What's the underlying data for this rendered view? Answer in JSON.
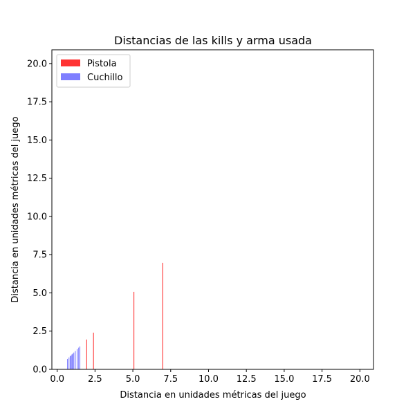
{
  "chart_data": {
    "type": "bar",
    "title": "Distancias de las kills y arma usada",
    "xlabel": "Distancia en unidades métricas del juego",
    "ylabel": "Distancia en unidades métricas del juego",
    "xlim": [
      -0.35,
      20.9
    ],
    "ylim": [
      0,
      20.9
    ],
    "xticks": [
      "0.0",
      "2.5",
      "5.0",
      "7.5",
      "10.0",
      "12.5",
      "15.0",
      "17.5",
      "20.0"
    ],
    "yticks": [
      "0.0",
      "2.5",
      "5.0",
      "7.5",
      "10.0",
      "12.5",
      "15.0",
      "17.5",
      "20.0"
    ],
    "grid": false,
    "legend_position": "top-left",
    "series": [
      {
        "name": "Pistola",
        "color": "#ff0000",
        "opacity": 0.8,
        "x": [
          1.95,
          2.4,
          5.07,
          6.97
        ],
        "values": [
          1.95,
          2.4,
          5.07,
          6.97
        ]
      },
      {
        "name": "Cuchillo",
        "color": "#0000ff",
        "opacity": 0.5,
        "x": [
          0.68,
          0.78,
          0.86,
          0.92,
          0.98,
          1.03,
          1.1,
          1.2,
          1.32,
          1.42,
          1.5
        ],
        "values": [
          0.68,
          0.78,
          0.86,
          0.92,
          0.98,
          1.03,
          1.1,
          1.2,
          1.32,
          1.42,
          1.5
        ]
      }
    ]
  }
}
